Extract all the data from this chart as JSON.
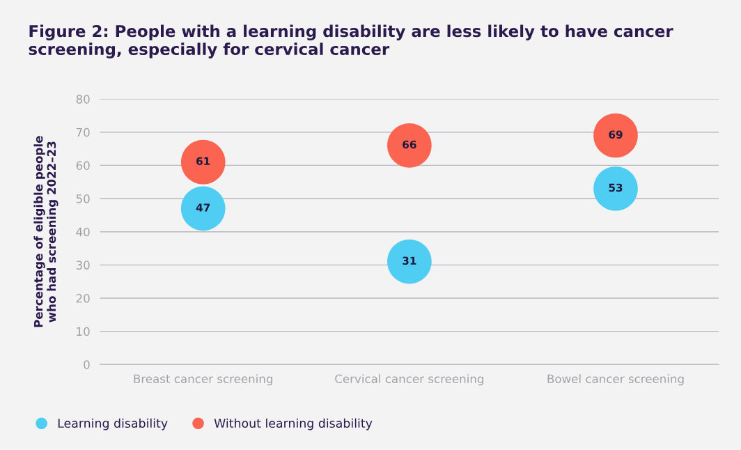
{
  "chart_data": {
    "type": "scatter",
    "title": "Figure 2: People with a learning disability are less likely to have cancer screening, especially for cervical cancer",
    "ylabel": "Percentage of eligible people\nwho had screening 2022–23",
    "categories": [
      "Breast cancer screening",
      "Cervical cancer screening",
      "Bowel cancer screening"
    ],
    "series": [
      {
        "name": "Learning disability",
        "color": "#4fcdf2",
        "values": [
          47,
          31,
          53
        ]
      },
      {
        "name": "Without learning disability",
        "color": "#fa6450",
        "values": [
          61,
          66,
          69
        ]
      }
    ],
    "ylim": [
      0,
      80
    ],
    "yticks": [
      0,
      10,
      20,
      30,
      40,
      50,
      60,
      70,
      80
    ],
    "grid": "y",
    "legend": "bottom left",
    "marker": "circle",
    "data_labels": true
  }
}
